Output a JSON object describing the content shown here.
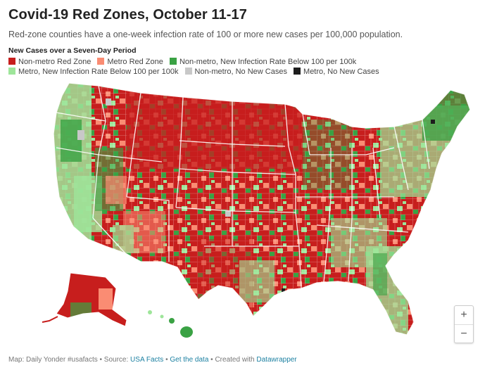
{
  "header": {
    "title": "Covid-19 Red Zones, October 11-17",
    "subtitle": "Red-zone counties have a one-week infection rate of 100 or more new cases per 100,000 population."
  },
  "legend": {
    "heading": "New Cases over a Seven-Day Period",
    "items": [
      {
        "label": "Non-metro Red Zone",
        "color": "#c71e1d"
      },
      {
        "label": "Metro Red Zone",
        "color": "#fa8c73"
      },
      {
        "label": "Non-metro, New Infection Rate Below 100 per 100k",
        "color": "#3aa244"
      },
      {
        "label": "Metro, New Infection Rate Below 100 per 100k",
        "color": "#9ee59a"
      },
      {
        "label": "Non-metro, No New Cases",
        "color": "#c8c8c8"
      },
      {
        "label": "Metro, No New Cases",
        "color": "#1d1d1d"
      }
    ]
  },
  "map": {
    "colors": {
      "nonmetro_red": "#c71e1d",
      "metro_red": "#fa8c73",
      "nonmetro_green": "#3aa244",
      "metro_green": "#9ee59a",
      "nonmetro_none": "#c8c8c8",
      "metro_none": "#1d1d1d"
    }
  },
  "zoom": {
    "in_label": "+",
    "out_label": "−"
  },
  "footer": {
    "prefix": "Map: Daily Yonder #usafacts • Source: ",
    "source_link": "USA Facts",
    "sep1": " • ",
    "data_link": "Get the data",
    "sep2": " • Created with ",
    "tool_link": "Datawrapper"
  }
}
